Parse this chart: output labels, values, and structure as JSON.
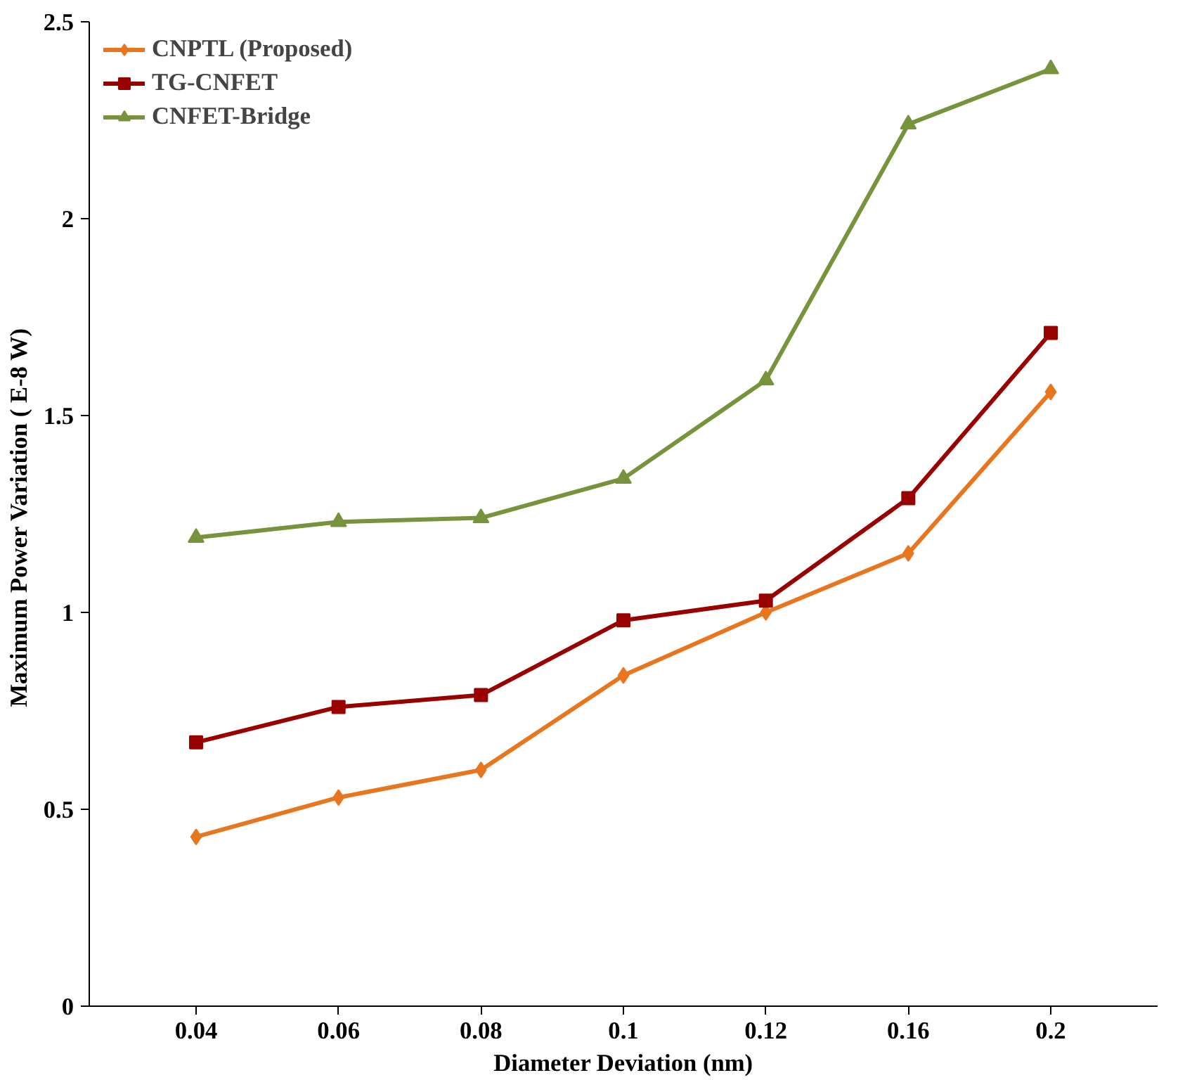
{
  "chart_data": {
    "type": "line",
    "xlabel": "Diameter Deviation (nm)",
    "ylabel": "Maximum Power Variation  ( E-8 W)",
    "categories": [
      "0.04",
      "0.06",
      "0.08",
      "0.1",
      "0.12",
      "0.16",
      "0.2"
    ],
    "ylim": [
      0,
      2.5
    ],
    "yticks": [
      0,
      0.5,
      1,
      1.5,
      2,
      2.5
    ],
    "grid": false,
    "legend": "top left",
    "line_style": "solid",
    "series": [
      {
        "name": "CNPTL (Proposed)",
        "color": "#e8761e",
        "marker": "diamond",
        "values": [
          0.43,
          0.53,
          0.6,
          0.84,
          1.0,
          1.15,
          1.56
        ]
      },
      {
        "name": "TG-CNFET",
        "color": "#990000",
        "marker": "square",
        "values": [
          0.67,
          0.76,
          0.79,
          0.98,
          1.03,
          1.29,
          1.71
        ]
      },
      {
        "name": "CNFET-Bridge",
        "color": "#77933c",
        "marker": "triangle",
        "values": [
          1.19,
          1.23,
          1.24,
          1.34,
          1.59,
          2.24,
          2.38
        ]
      }
    ]
  }
}
